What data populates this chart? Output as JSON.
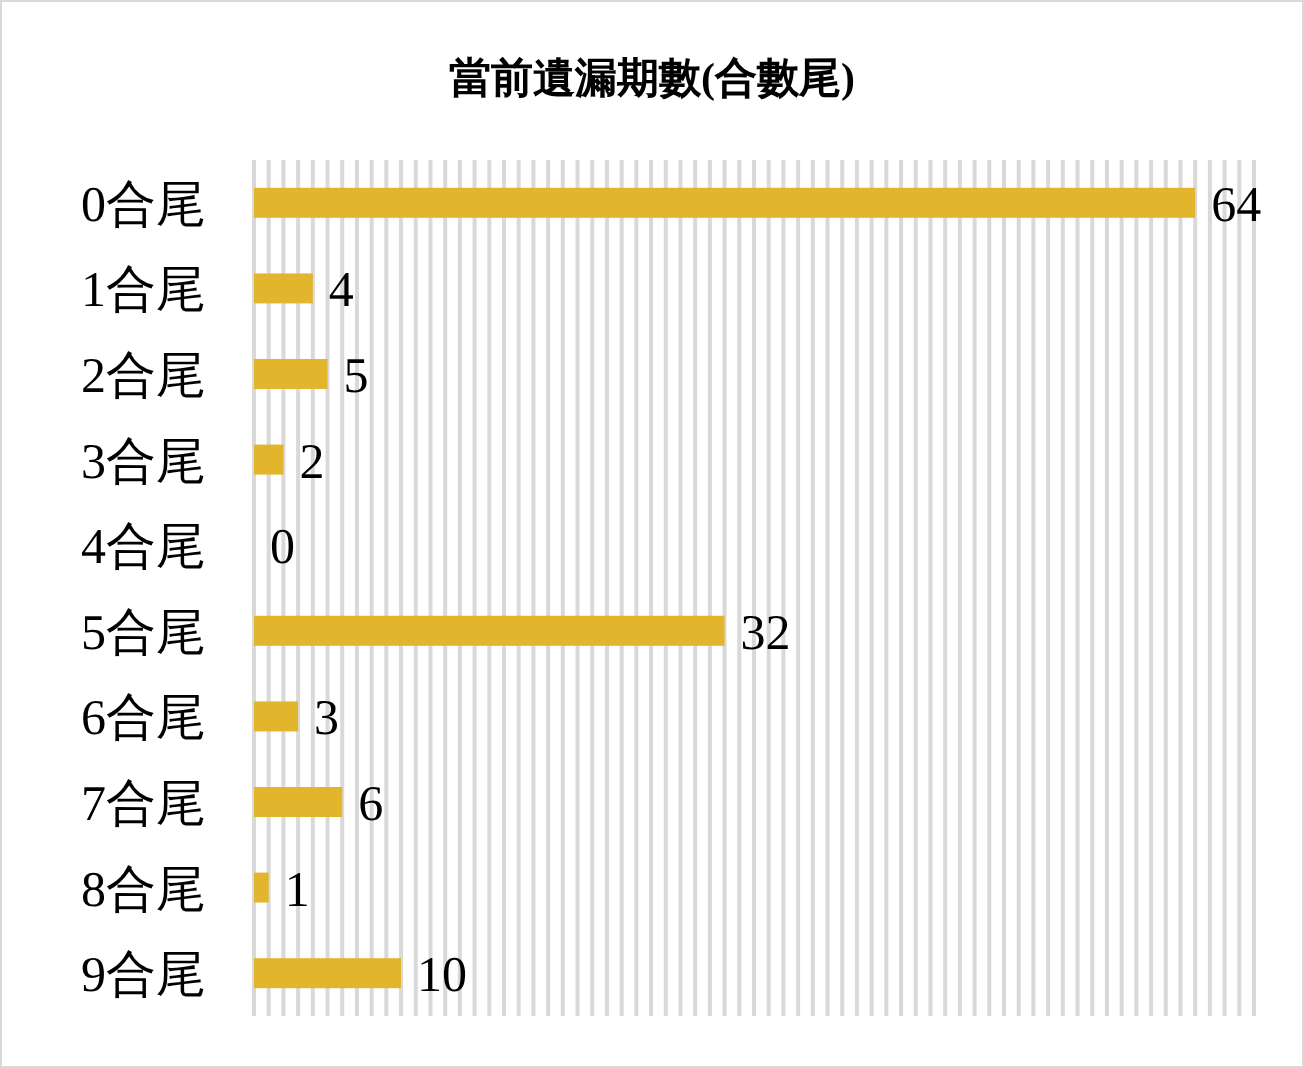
{
  "chart_data": {
    "type": "bar",
    "orientation": "horizontal",
    "title": "當前遺漏期數(合數尾)",
    "categories": [
      "0合尾",
      "1合尾",
      "2合尾",
      "3合尾",
      "4合尾",
      "5合尾",
      "6合尾",
      "7合尾",
      "8合尾",
      "9合尾"
    ],
    "values": [
      64,
      4,
      5,
      2,
      0,
      32,
      3,
      6,
      1,
      10
    ],
    "color": "#e2b52c",
    "xlim": [
      0,
      68
    ],
    "xticks": [
      0,
      1,
      2,
      3,
      4,
      5,
      6,
      7,
      8,
      9,
      10,
      11,
      12,
      13,
      14,
      15,
      16,
      17,
      18,
      19,
      20,
      21,
      22,
      23,
      24,
      25,
      26,
      27,
      28,
      29,
      30,
      31,
      32,
      33,
      34,
      35,
      36,
      37,
      38,
      39,
      40,
      41,
      42,
      43,
      44,
      45,
      46,
      47,
      48,
      49,
      50,
      51,
      52,
      53,
      54,
      55,
      56,
      57,
      58,
      59,
      60,
      61,
      62,
      63,
      64,
      65,
      66,
      67,
      68
    ],
    "tick_labels": "y",
    "grid": "x",
    "data_labels": true
  }
}
